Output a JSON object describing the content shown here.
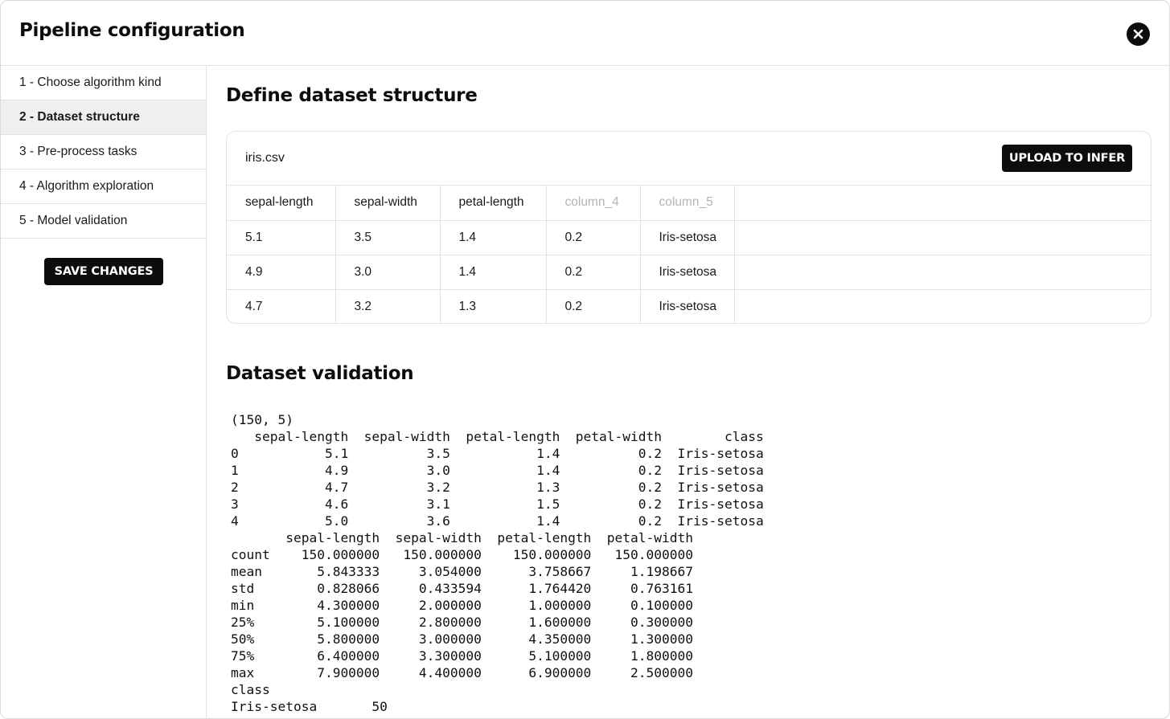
{
  "header": {
    "title": "Pipeline configuration",
    "close_icon": "close-icon"
  },
  "sidebar": {
    "steps": [
      {
        "label": "1 - Choose algorithm kind",
        "active": false
      },
      {
        "label": "2 - Dataset structure",
        "active": true
      },
      {
        "label": "3 - Pre-process tasks",
        "active": false
      },
      {
        "label": "4 - Algorithm exploration",
        "active": false
      },
      {
        "label": "5 - Model validation",
        "active": false
      }
    ],
    "save_label": "SAVE CHANGES"
  },
  "structure": {
    "title": "Define dataset structure",
    "file_name": "iris.csv",
    "upload_label": "UPLOAD TO INFER",
    "columns": [
      {
        "label": "sepal-length",
        "muted": false
      },
      {
        "label": "sepal-width",
        "muted": false
      },
      {
        "label": "petal-length",
        "muted": false
      },
      {
        "label": "column_4",
        "muted": true
      },
      {
        "label": "column_5",
        "muted": true
      }
    ],
    "rows": [
      [
        "5.1",
        "3.5",
        "1.4",
        "0.2",
        "Iris-setosa"
      ],
      [
        "4.9",
        "3.0",
        "1.4",
        "0.2",
        "Iris-setosa"
      ],
      [
        "4.7",
        "3.2",
        "1.3",
        "0.2",
        "Iris-setosa"
      ]
    ]
  },
  "validation": {
    "title": "Dataset validation",
    "output_lines": [
      "(150, 5)",
      "   sepal-length  sepal-width  petal-length  petal-width        class",
      "0           5.1          3.5           1.4          0.2  Iris-setosa",
      "1           4.9          3.0           1.4          0.2  Iris-setosa",
      "2           4.7          3.2           1.3          0.2  Iris-setosa",
      "3           4.6          3.1           1.5          0.2  Iris-setosa",
      "4           5.0          3.6           1.4          0.2  Iris-setosa",
      "       sepal-length  sepal-width  petal-length  petal-width",
      "count    150.000000   150.000000    150.000000   150.000000",
      "mean       5.843333     3.054000      3.758667     1.198667",
      "std        0.828066     0.433594      1.764420     0.763161",
      "min        4.300000     2.000000      1.000000     0.100000",
      "25%        5.100000     2.800000      1.600000     0.300000",
      "50%        5.800000     3.000000      4.350000     1.300000",
      "75%        6.400000     3.300000      5.100000     1.800000",
      "max        7.900000     4.400000      6.900000     2.500000",
      "class",
      "Iris-setosa       50"
    ]
  }
}
